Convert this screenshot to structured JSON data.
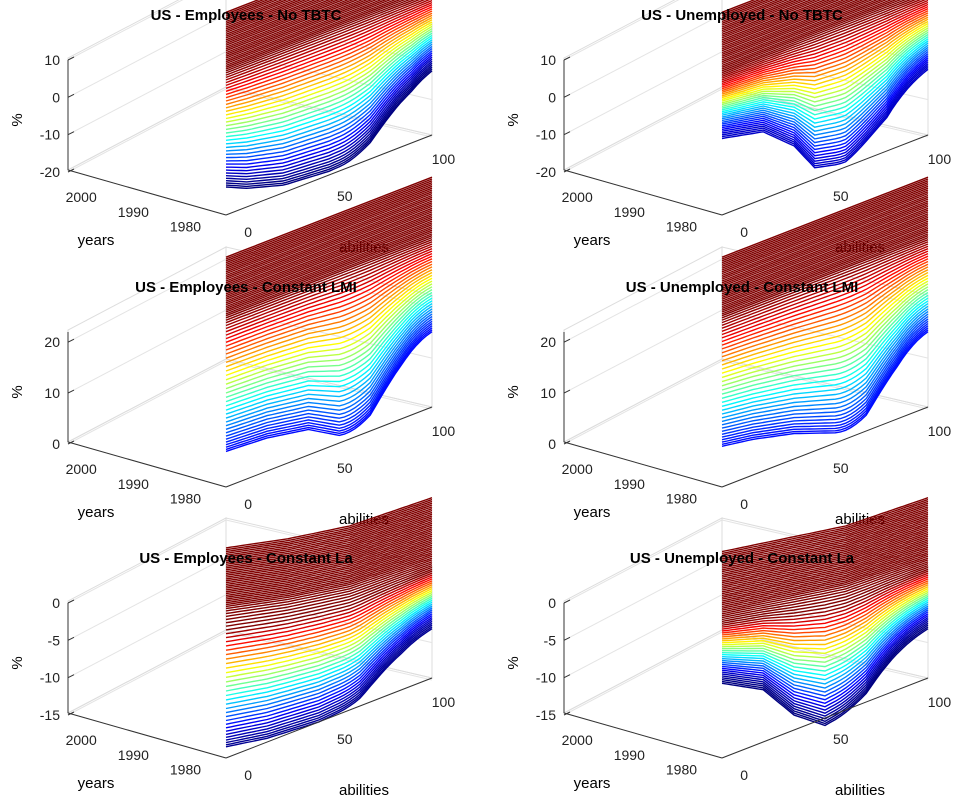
{
  "chart_data": [
    {
      "type": "surface",
      "title": "US - Employees - No TBTC",
      "xlabel": "abilities",
      "ylabel": "years",
      "zlabel": "%",
      "xticks": [
        "0",
        "50",
        "100"
      ],
      "yticks": [
        "1980",
        "1990",
        "2000"
      ],
      "zticks": [
        "-20",
        "-10",
        "0",
        "10"
      ],
      "zlim": [
        -20,
        10
      ],
      "x_range": [
        0,
        100
      ],
      "y_range": [
        1975,
        2005
      ],
      "plateau": 0,
      "front_low": -19,
      "front_profile": [
        [
          0,
          -12.5
        ],
        [
          0.1,
          -15
        ],
        [
          0.28,
          -18
        ],
        [
          0.5,
          -19
        ],
        [
          0.7,
          -18.5
        ],
        [
          0.9,
          -13
        ],
        [
          1.0,
          -7
        ]
      ],
      "floor_value": -20,
      "colormap": "jet"
    },
    {
      "type": "surface",
      "title": "US - Unemployed - No TBTC",
      "xlabel": "abilities",
      "ylabel": "years",
      "zlabel": "%",
      "xticks": [
        "0",
        "50",
        "100"
      ],
      "yticks": [
        "1980",
        "1990",
        "2000"
      ],
      "zticks": [
        "-20",
        "-10",
        "0",
        "10"
      ],
      "zlim": [
        -20,
        10
      ],
      "x_range": [
        0,
        100
      ],
      "y_range": [
        1975,
        2005
      ],
      "plateau": 0,
      "front_low": -19,
      "front_profile": [
        [
          0,
          0.5
        ],
        [
          0.2,
          -2
        ],
        [
          0.35,
          -9
        ],
        [
          0.45,
          -17
        ],
        [
          0.6,
          -19
        ],
        [
          0.8,
          -17
        ],
        [
          1.0,
          -6
        ]
      ],
      "floor_value": -20,
      "colormap": "jet"
    },
    {
      "type": "surface",
      "title": "US - Employees - Constant LMI",
      "xlabel": "abilities",
      "ylabel": "years",
      "zlabel": "%",
      "xticks": [
        "0",
        "50",
        "100"
      ],
      "yticks": [
        "1980",
        "1990",
        "2000"
      ],
      "zticks": [
        "0",
        "10",
        "20"
      ],
      "zlim": [
        0,
        22
      ],
      "x_range": [
        0,
        100
      ],
      "y_range": [
        1975,
        2005
      ],
      "plateau": 20,
      "front_low": 0,
      "front_profile": [
        [
          0,
          7
        ],
        [
          0.2,
          6.5
        ],
        [
          0.4,
          5
        ],
        [
          0.55,
          1.5
        ],
        [
          0.7,
          0
        ],
        [
          0.85,
          3
        ],
        [
          1.0,
          7
        ]
      ],
      "floor_value": 0,
      "colormap": "jet"
    },
    {
      "type": "surface",
      "title": "US - Unemployed - Constant LMI",
      "xlabel": "abilities",
      "ylabel": "years",
      "zlabel": "%",
      "xticks": [
        "0",
        "50",
        "100"
      ],
      "yticks": [
        "1980",
        "1990",
        "2000"
      ],
      "zticks": [
        "0",
        "10",
        "20"
      ],
      "zlim": [
        0,
        22
      ],
      "x_range": [
        0,
        100
      ],
      "y_range": [
        1975,
        2005
      ],
      "plateau": 20,
      "front_low": 0,
      "front_profile": [
        [
          0,
          8
        ],
        [
          0.15,
          7
        ],
        [
          0.35,
          5
        ],
        [
          0.55,
          2
        ],
        [
          0.7,
          0
        ],
        [
          0.85,
          2.5
        ],
        [
          1.0,
          7
        ]
      ],
      "floor_value": 0,
      "colormap": "jet"
    },
    {
      "type": "surface",
      "title": "US - Employees - Constant La",
      "xlabel": "abilities",
      "ylabel": "years",
      "zlabel": "%",
      "xticks": [
        "0",
        "50",
        "100"
      ],
      "yticks": [
        "1980",
        "1990",
        "2000"
      ],
      "zticks": [
        "-15",
        "-10",
        "-5",
        "0"
      ],
      "zlim": [
        -15,
        0
      ],
      "x_range": [
        0,
        100
      ],
      "y_range": [
        1975,
        2005
      ],
      "plateau": -8,
      "front_low": -15,
      "front_profile": [
        [
          0,
          -13.5
        ],
        [
          0.2,
          -14.5
        ],
        [
          0.45,
          -15
        ],
        [
          0.65,
          -14.5
        ],
        [
          0.85,
          -12
        ],
        [
          1.0,
          -9
        ]
      ],
      "back_profile": [
        [
          0,
          -4
        ],
        [
          0.3,
          -6
        ],
        [
          0.6,
          -7.5
        ],
        [
          1.0,
          -8
        ]
      ],
      "floor_value": -15,
      "colormap": "jet"
    },
    {
      "type": "surface",
      "title": "US - Unemployed - Constant La",
      "xlabel": "abilities",
      "ylabel": "years",
      "zlabel": "%",
      "xticks": [
        "0",
        "50",
        "100"
      ],
      "yticks": [
        "1980",
        "1990",
        "2000"
      ],
      "zticks": [
        "-15",
        "-10",
        "-5",
        "0"
      ],
      "zlim": [
        -15,
        0
      ],
      "x_range": [
        0,
        100
      ],
      "y_range": [
        1975,
        2005
      ],
      "plateau": -8,
      "front_low": -16,
      "front_profile": [
        [
          0,
          -5
        ],
        [
          0.2,
          -8
        ],
        [
          0.35,
          -13
        ],
        [
          0.5,
          -16
        ],
        [
          0.7,
          -15
        ],
        [
          0.85,
          -12
        ],
        [
          1.0,
          -9
        ]
      ],
      "back_profile": [
        [
          0,
          -4.5
        ],
        [
          0.3,
          -6
        ],
        [
          0.6,
          -7.5
        ],
        [
          1.0,
          -8
        ]
      ],
      "floor_value": -15,
      "colormap": "jet"
    }
  ]
}
